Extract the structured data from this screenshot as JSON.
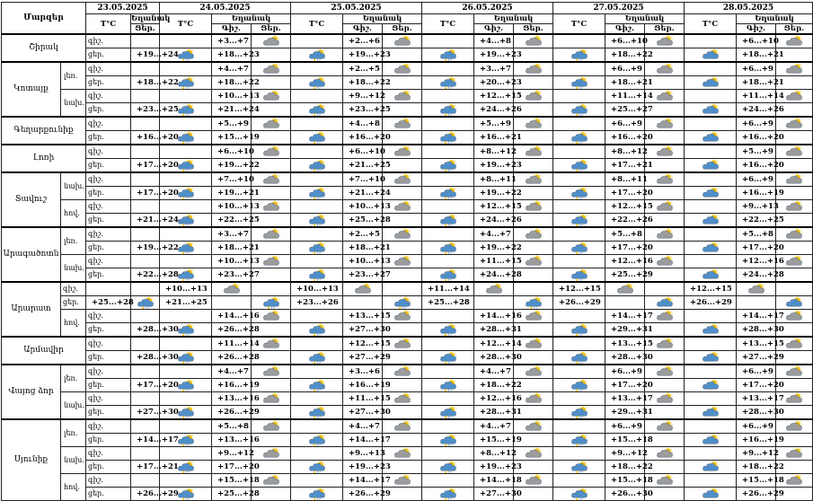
{
  "header": {
    "region_label": "Մարզեր",
    "temp_label": "T°C",
    "weather_label": "Եղանակ",
    "day_label": "Ցեր.",
    "night_label": "Գիշ."
  },
  "dates": [
    "23.05.2025",
    "24.05.2025",
    "25.05.2025",
    "26.05.2025",
    "27.05.2025",
    "28.05.2025"
  ],
  "icon_types": {
    "s": "sun-cloud-icon",
    "ps": "sun-cloud-rain-icon",
    "c": "cloud-icon",
    "cr": "cloud-rain-icon",
    "sr": "sun-cloud-rain-icon",
    "cl": "cloud-lightning-icon",
    "sl": "sun-cloud-lightning-icon"
  },
  "regions": [
    {
      "name": "Շիրակ",
      "rows": [
        {
          "sub": "",
          "tod": "գիշ.",
          "t": [
            "",
            "+3...+7",
            "+2...+6",
            "+4...+8",
            "+6...+10",
            "+6...+10"
          ],
          "ic": [
            "",
            "c",
            "c",
            "c",
            "c",
            "c"
          ]
        },
        {
          "sub": "",
          "tod": "ցեր.",
          "t": [
            "+19...+24",
            "+18...+23",
            "+19...+23",
            "+19...+23",
            "+18...+22",
            "+18...+21"
          ],
          "ic": [
            "cl",
            "cl",
            "cl",
            "cl",
            "sl",
            "sl"
          ]
        }
      ]
    },
    {
      "name": "Կոտայք",
      "rows": [
        {
          "sub": "լեռ.",
          "tod": "գիշ.",
          "t": [
            "",
            "+4...+7",
            "+2...+5",
            "+3...+7",
            "+6...+9",
            "+6...+9"
          ],
          "ic": [
            "",
            "c",
            "c",
            "c",
            "c",
            "c"
          ]
        },
        {
          "sub": "",
          "tod": "ցեր.",
          "t": [
            "+18...+22",
            "+18...+22",
            "+18...+22",
            "+20...+23",
            "+18...+21",
            "+18...+21"
          ],
          "ic": [
            "cl",
            "cl",
            "cl",
            "cl",
            "sl",
            "sl"
          ]
        },
        {
          "sub": "նախ.",
          "tod": "գիշ.",
          "t": [
            "",
            "+10...+13",
            "+9...+12",
            "+12...+15",
            "+11...+14",
            "+11...+14"
          ],
          "ic": [
            "",
            "c",
            "c",
            "c",
            "c",
            "c"
          ]
        },
        {
          "sub": "",
          "tod": "ցեր.",
          "t": [
            "+23...+25",
            "+21...+24",
            "+23...+25",
            "+24...+26",
            "+25...+27",
            "+24...+26"
          ],
          "ic": [
            "cl",
            "cl",
            "cl",
            "cl",
            "sl",
            "sl"
          ]
        }
      ]
    },
    {
      "name": "Գեղարքունիք",
      "rows": [
        {
          "sub": "",
          "tod": "գիշ.",
          "t": [
            "",
            "+5...+9",
            "+4...+8",
            "+5...+9",
            "+6...+9",
            "+6...+9"
          ],
          "ic": [
            "",
            "c",
            "c",
            "c",
            "c",
            "c"
          ]
        },
        {
          "sub": "",
          "tod": "ցեր.",
          "t": [
            "+16...+20",
            "+15...+19",
            "+16...+20",
            "+16...+21",
            "+16...+20",
            "+16...+20"
          ],
          "ic": [
            "cl",
            "cl",
            "cl",
            "cl",
            "sl",
            "sl"
          ]
        }
      ]
    },
    {
      "name": "Լոռի",
      "rows": [
        {
          "sub": "",
          "tod": "գիշ.",
          "t": [
            "",
            "+6...+10",
            "+6...+10",
            "+8...+12",
            "+8...+12",
            "+5...+9"
          ],
          "ic": [
            "",
            "c",
            "c",
            "c",
            "c",
            "c"
          ]
        },
        {
          "sub": "",
          "tod": "ցեր.",
          "t": [
            "+17...+20",
            "+19...+22",
            "+21...+25",
            "+19...+23",
            "+17...+21",
            "+16...+20"
          ],
          "ic": [
            "cl",
            "cl",
            "cl",
            "cl",
            "sl",
            "sl"
          ]
        }
      ]
    },
    {
      "name": "Տավուշ",
      "rows": [
        {
          "sub": "նախ.",
          "tod": "գիշ.",
          "t": [
            "",
            "+7...+10",
            "+7...+10",
            "+8...+11",
            "+8...+11",
            "+6...+9"
          ],
          "ic": [
            "",
            "c",
            "c",
            "c",
            "c",
            "c"
          ]
        },
        {
          "sub": "",
          "tod": "ցեր.",
          "t": [
            "+17...+20",
            "+19...+21",
            "+21...+24",
            "+19...+22",
            "+17...+20",
            "+16...+19"
          ],
          "ic": [
            "cl",
            "cl",
            "cl",
            "cl",
            "sl",
            "sl"
          ]
        },
        {
          "sub": "հով.",
          "tod": "գիշ.",
          "t": [
            "",
            "+10...+13",
            "+10...+13",
            "+12...+15",
            "+12...+15",
            "+9...+13"
          ],
          "ic": [
            "",
            "c",
            "c",
            "c",
            "c",
            "c"
          ]
        },
        {
          "sub": "",
          "tod": "ցեր.",
          "t": [
            "+21...+24",
            "+22...+25",
            "+25...+28",
            "+24...+26",
            "+22...+26",
            "+22...+25"
          ],
          "ic": [
            "cl",
            "cl",
            "cl",
            "cl",
            "sl",
            "sl"
          ]
        }
      ]
    },
    {
      "name": "Արագածոտն",
      "rows": [
        {
          "sub": "լեռ.",
          "tod": "գիշ.",
          "t": [
            "",
            "+3...+7",
            "+2...+5",
            "+4...+7",
            "+5...+8",
            "+5...+8"
          ],
          "ic": [
            "",
            "c",
            "c",
            "c",
            "c",
            "c"
          ]
        },
        {
          "sub": "",
          "tod": "ցեր.",
          "t": [
            "+19...+22",
            "+18...+21",
            "+18...+21",
            "+19...+22",
            "+17...+20",
            "+17...+20"
          ],
          "ic": [
            "cl",
            "cl",
            "cl",
            "cl",
            "sl",
            "sl"
          ]
        },
        {
          "sub": "նախ.",
          "tod": "գիշ.",
          "t": [
            "",
            "+10...+13",
            "+10...+13",
            "+11...+15",
            "+12...+16",
            "+12...+16"
          ],
          "ic": [
            "",
            "c",
            "c",
            "c",
            "c",
            "c"
          ]
        },
        {
          "sub": "",
          "tod": "ցեր.",
          "t": [
            "+22...+28",
            "+23...+27",
            "+23...+27",
            "+24...+28",
            "+25...+29",
            "+24...+28"
          ],
          "ic": [
            "cl",
            "cl",
            "cl",
            "cl",
            "sl",
            "sl"
          ]
        }
      ]
    },
    {
      "name": "Արարատ",
      "rows": [
        {
          "sub": "",
          "tod": "գիշ.",
          "t": [
            "",
            "+10...+13",
            "+10...+13",
            "+11...+14",
            "+12...+15",
            "+12...+15"
          ],
          "ic": [
            "",
            "c",
            "c",
            "c",
            "c",
            "c"
          ]
        },
        {
          "sub": "",
          "tod": "ցեր.",
          "t": [
            "+25...+28",
            "+21...+25",
            "+23...+26",
            "+25...+28",
            "+26...+29",
            "+26...+29"
          ],
          "ic": [
            "cl",
            "cl",
            "cl",
            "cl",
            "sl",
            "sl"
          ]
        },
        {
          "sub": "հով.",
          "tod": "գիշ.",
          "t": [
            "",
            "+14...+16",
            "+13...+15",
            "+14...+16",
            "+14...+17",
            "+14...+17"
          ],
          "ic": [
            "",
            "c",
            "c",
            "c",
            "c",
            "c"
          ]
        },
        {
          "sub": "",
          "tod": "ցեր.",
          "t": [
            "+28...+30",
            "+26...+28",
            "+27...+30",
            "+28...+31",
            "+29...+31",
            "+28...+30"
          ],
          "ic": [
            "cl",
            "cl",
            "cl",
            "cl",
            "sl",
            "sl"
          ]
        }
      ]
    },
    {
      "name": "Արմավիր",
      "rows": [
        {
          "sub": "",
          "tod": "գիշ.",
          "t": [
            "",
            "+11...+14",
            "+12...+15",
            "+12...+14",
            "+13...+15",
            "+13...+15"
          ],
          "ic": [
            "",
            "c",
            "c",
            "c",
            "c",
            "c"
          ]
        },
        {
          "sub": "",
          "tod": "ցեր.",
          "t": [
            "+28...+30",
            "+26...+28",
            "+27...+29",
            "+28...+30",
            "+28...+30",
            "+27...+29"
          ],
          "ic": [
            "cl",
            "cl",
            "cl",
            "cl",
            "sl",
            "sl"
          ]
        }
      ]
    },
    {
      "name": "Վայոց ձոր",
      "rows": [
        {
          "sub": "լեռ.",
          "tod": "գիշ.",
          "t": [
            "",
            "+4...+7",
            "+3...+6",
            "+4...+7",
            "+6...+9",
            "+6...+9"
          ],
          "ic": [
            "",
            "c",
            "c",
            "c",
            "c",
            "c"
          ]
        },
        {
          "sub": "",
          "tod": "ցեր.",
          "t": [
            "+17...+20",
            "+16...+19",
            "+16...+19",
            "+18...+22",
            "+17...+20",
            "+17...+20"
          ],
          "ic": [
            "cl",
            "cl",
            "cl",
            "cl",
            "sl",
            "sl"
          ]
        },
        {
          "sub": "նախ.",
          "tod": "գիշ.",
          "t": [
            "",
            "+13...+16",
            "+11...+15",
            "+12...+16",
            "+13...+17",
            "+13...+17"
          ],
          "ic": [
            "",
            "c",
            "c",
            "c",
            "c",
            "c"
          ]
        },
        {
          "sub": "",
          "tod": "ցեր.",
          "t": [
            "+27...+30",
            "+26...+29",
            "+27...+30",
            "+28...+31",
            "+29...+31",
            "+28...+30"
          ],
          "ic": [
            "cl",
            "cl",
            "cl",
            "cl",
            "sl",
            "sl"
          ]
        }
      ]
    },
    {
      "name": "Սյունիք",
      "rows": [
        {
          "sub": "լեռ.",
          "tod": "գիշ.",
          "t": [
            "",
            "+5...+8",
            "+4...+7",
            "+4...+7",
            "+6...+9",
            "+6...+9"
          ],
          "ic": [
            "",
            "c",
            "c",
            "c",
            "c",
            "c"
          ]
        },
        {
          "sub": "",
          "tod": "ցեր.",
          "t": [
            "+14...+17",
            "+13...+16",
            "+14...+17",
            "+15...+19",
            "+15...+18",
            "+16...+19"
          ],
          "ic": [
            "cl",
            "cl",
            "cl",
            "cl",
            "sl",
            "sl"
          ]
        },
        {
          "sub": "նախ.",
          "tod": "գիշ.",
          "t": [
            "",
            "+9...+12",
            "+9...+13",
            "+8...+12",
            "+9...+12",
            "+9...+12"
          ],
          "ic": [
            "",
            "c",
            "c",
            "c",
            "c",
            "c"
          ]
        },
        {
          "sub": "",
          "tod": "ցեր.",
          "t": [
            "+17...+21",
            "+17...+20",
            "+19...+23",
            "+19...+23",
            "+18...+22",
            "+18...+22"
          ],
          "ic": [
            "cl",
            "cl",
            "cl",
            "cl",
            "sl",
            "sl"
          ]
        },
        {
          "sub": "հով.",
          "tod": "գիշ.",
          "t": [
            "",
            "+15...+18",
            "+14...+17",
            "+14...+18",
            "+15...+18",
            "+15...+18"
          ],
          "ic": [
            "",
            "c",
            "c",
            "c",
            "c",
            "c"
          ]
        },
        {
          "sub": "",
          "tod": "ցեր.",
          "t": [
            "+26...+29",
            "+25...+28",
            "+26...+29",
            "+27...+30",
            "+26...+30",
            "+26...+29"
          ],
          "ic": [
            "cl",
            "cl",
            "cl",
            "cl",
            "sl",
            "sl"
          ]
        }
      ]
    }
  ]
}
